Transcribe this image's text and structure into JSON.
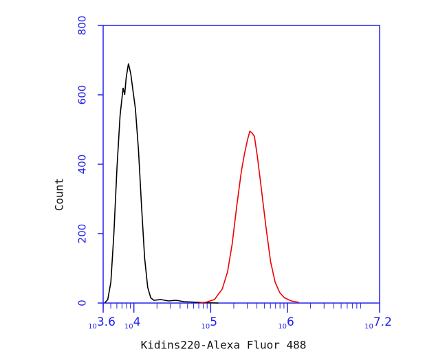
{
  "chart_data": {
    "type": "line",
    "x_label": "Kidins220-Alexa Fluor 488",
    "y_label": "Count",
    "log_x": true,
    "xlim": [
      3981.07,
      15848932
    ],
    "xticks": [
      {
        "value": 3981.07,
        "label": "10",
        "power": "3.6"
      },
      {
        "value": 10000,
        "label": "10",
        "power": "4"
      },
      {
        "value": 100000,
        "label": "10",
        "power": "5"
      },
      {
        "value": 1000000,
        "label": "10",
        "power": "6"
      },
      {
        "value": 15848932,
        "label": "10",
        "power": "7.2"
      }
    ],
    "ylim": [
      0,
      800
    ],
    "yticks": [
      0,
      200,
      400,
      600,
      800
    ],
    "axis_color": "#2222ee",
    "series": [
      {
        "color": "#000000",
        "x": [
          4169,
          4571,
          5012,
          5495,
          6026,
          6607,
          7244,
          7586,
          7943,
          8511,
          9120,
          9772,
          10471,
          11482,
          12589,
          13804,
          15136,
          16596,
          18197,
          22387,
          28184,
          35481,
          44668,
          56234,
          70795,
          89125,
          125893
        ],
        "values": [
          0,
          10,
          60,
          200,
          390,
          540,
          620,
          600,
          650,
          690,
          660,
          610,
          560,
          440,
          280,
          130,
          45,
          15,
          8,
          10,
          6,
          8,
          4,
          3,
          2,
          1,
          0
        ]
      },
      {
        "color": "#ee0000",
        "x": [
          70795,
          89125,
          112202,
          141254,
          165959,
          190546,
          218776,
          251189,
          275423,
          301995,
          323594,
          346737,
          371535,
          407380,
          457088,
          524807,
          602560,
          691831,
          794328,
          912011,
          1122018,
          1412538
        ],
        "values": [
          0,
          3,
          10,
          40,
          90,
          170,
          280,
          380,
          430,
          470,
          495,
          490,
          480,
          420,
          330,
          220,
          120,
          60,
          30,
          15,
          6,
          2
        ]
      }
    ]
  }
}
